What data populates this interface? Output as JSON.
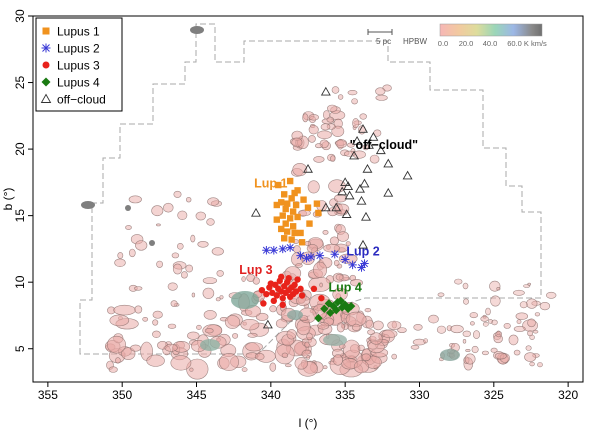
{
  "chart_data": {
    "type": "scatter",
    "title": "",
    "xlabel": "l (°)",
    "ylabel": "b (°)",
    "xlim": [
      356,
      319
    ],
    "ylim": [
      2.5,
      30
    ],
    "x_reversed": true,
    "xticks": [
      355,
      350,
      345,
      340,
      335,
      330,
      325,
      320
    ],
    "yticks": [
      5,
      10,
      15,
      20,
      25,
      30
    ],
    "grid": false,
    "legend_position": "top-left",
    "series": [
      {
        "name": "Lupus 1",
        "marker": "square",
        "color": "#f0921e",
        "points": [
          [
            339.5,
            17.3
          ],
          [
            338.7,
            17.6
          ],
          [
            338.2,
            16.9
          ],
          [
            339.1,
            16.6
          ],
          [
            338.6,
            16.3
          ],
          [
            339.3,
            16.0
          ],
          [
            338.9,
            15.9
          ],
          [
            338.3,
            15.8
          ],
          [
            337.8,
            16.2
          ],
          [
            339.0,
            15.5
          ],
          [
            338.5,
            15.3
          ],
          [
            337.5,
            15.6
          ],
          [
            339.2,
            15.0
          ],
          [
            338.7,
            14.8
          ],
          [
            338.2,
            14.9
          ],
          [
            339.0,
            14.4
          ],
          [
            338.5,
            14.2
          ],
          [
            339.3,
            14.0
          ],
          [
            338.9,
            13.8
          ],
          [
            338.4,
            13.7
          ],
          [
            339.1,
            13.3
          ],
          [
            338.6,
            13.2
          ],
          [
            337.9,
            13.0
          ],
          [
            337.4,
            14.4
          ],
          [
            336.8,
            15.2
          ],
          [
            336.9,
            15.9
          ],
          [
            338.0,
            13.7
          ],
          [
            339.6,
            15.8
          ],
          [
            339.6,
            14.7
          ],
          [
            338.4,
            16.7
          ]
        ]
      },
      {
        "name": "Lupus 2",
        "marker": "asterisk",
        "color": "#3a3ad6",
        "points": [
          [
            340.3,
            12.4
          ],
          [
            339.8,
            12.4
          ],
          [
            339.2,
            12.5
          ],
          [
            338.7,
            12.6
          ],
          [
            338.0,
            12.0
          ],
          [
            337.6,
            11.8
          ],
          [
            337.3,
            11.9
          ],
          [
            336.7,
            12.0
          ],
          [
            335.7,
            12.1
          ],
          [
            335.0,
            11.7
          ],
          [
            334.5,
            11.3
          ],
          [
            333.9,
            11.1
          ],
          [
            333.7,
            11.4
          ]
        ]
      },
      {
        "name": "Lupus 3",
        "marker": "circle",
        "color": "#e8221b",
        "points": [
          [
            340.6,
            9.4
          ],
          [
            340.3,
            9.1
          ],
          [
            340.1,
            9.6
          ],
          [
            339.9,
            9.2
          ],
          [
            339.7,
            9.8
          ],
          [
            339.6,
            9.0
          ],
          [
            339.5,
            9.5
          ],
          [
            339.4,
            10.1
          ],
          [
            339.3,
            9.3
          ],
          [
            339.2,
            8.8
          ],
          [
            339.1,
            9.7
          ],
          [
            339.0,
            9.2
          ],
          [
            338.9,
            10.0
          ],
          [
            338.8,
            9.4
          ],
          [
            338.7,
            8.9
          ],
          [
            338.6,
            9.6
          ],
          [
            338.5,
            9.1
          ],
          [
            338.4,
            9.8
          ],
          [
            338.3,
            9.3
          ],
          [
            338.2,
            10.2
          ],
          [
            338.0,
            9.5
          ],
          [
            339.8,
            8.6
          ],
          [
            340.0,
            9.9
          ],
          [
            339.3,
            10.4
          ],
          [
            338.8,
            10.3
          ],
          [
            337.9,
            9.0
          ],
          [
            337.1,
            9.5
          ],
          [
            336.6,
            8.8
          ],
          [
            340.5,
            8.4
          ],
          [
            339.2,
            8.3
          ]
        ]
      },
      {
        "name": "Lupus 4",
        "marker": "diamond",
        "color": "#1a7a12",
        "points": [
          [
            336.1,
            8.4
          ],
          [
            335.8,
            8.2
          ],
          [
            335.5,
            8.5
          ],
          [
            335.2,
            8.1
          ],
          [
            335.0,
            8.3
          ],
          [
            336.4,
            8.0
          ],
          [
            335.6,
            7.9
          ],
          [
            336.0,
            7.7
          ],
          [
            334.8,
            8.0
          ],
          [
            336.8,
            7.3
          ],
          [
            335.3,
            8.6
          ],
          [
            334.6,
            8.2
          ]
        ]
      },
      {
        "name": "off−cloud",
        "marker": "triangle",
        "color": "#333333",
        "points": [
          [
            336.3,
            24.3
          ],
          [
            333.8,
            21.5
          ],
          [
            333.1,
            20.9
          ],
          [
            334.2,
            20.6
          ],
          [
            333.4,
            20.3
          ],
          [
            332.6,
            19.9
          ],
          [
            334.4,
            19.5
          ],
          [
            332.1,
            18.9
          ],
          [
            333.5,
            18.5
          ],
          [
            330.8,
            18.0
          ],
          [
            335.0,
            17.5
          ],
          [
            333.7,
            17.4
          ],
          [
            334.8,
            17.2
          ],
          [
            334.0,
            17.0
          ],
          [
            335.2,
            16.8
          ],
          [
            332.1,
            16.7
          ],
          [
            334.7,
            16.5
          ],
          [
            333.9,
            16.1
          ],
          [
            335.6,
            15.6
          ],
          [
            336.3,
            15.6
          ],
          [
            334.9,
            15.1
          ],
          [
            333.6,
            14.9
          ],
          [
            337.5,
            18.5
          ],
          [
            341.0,
            15.2
          ],
          [
            333.8,
            12.8
          ],
          [
            340.2,
            6.8
          ]
        ]
      }
    ],
    "annotations": [
      {
        "text": "Lup 1",
        "color": "#f0921e",
        "x": 340.0,
        "y": 17.1
      },
      {
        "text": "Lup 2",
        "color": "#2b2bc0",
        "x": 333.8,
        "y": 12.0
      },
      {
        "text": "Lup 3",
        "color": "#e02020",
        "x": 341.0,
        "y": 10.6
      },
      {
        "text": "Lup 4",
        "color": "#1a7a12",
        "x": 335.0,
        "y": 9.3
      },
      {
        "text": "\"off−cloud\"",
        "color": "#000000",
        "x": 332.4,
        "y": 20.0
      }
    ],
    "colorbar": {
      "range": [
        0,
        60
      ],
      "ticks": [
        "0.0",
        "20.0",
        "40.0",
        "60.0 K km/s"
      ]
    },
    "scale_labels": {
      "pc": "5 pc",
      "beam": "HPBW"
    }
  }
}
